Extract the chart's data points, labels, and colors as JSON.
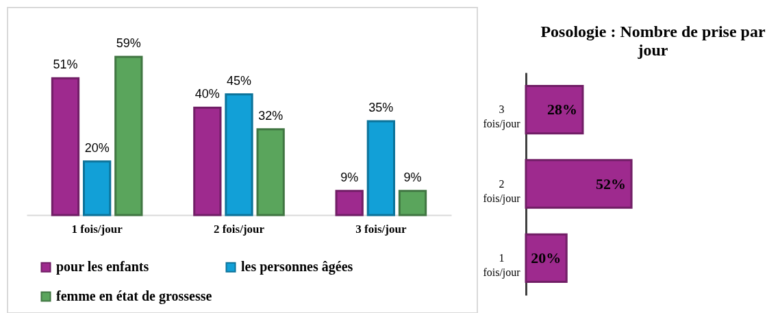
{
  "chart_data": [
    {
      "type": "bar",
      "categories": [
        "1 fois/jour",
        "2 fois/jour",
        "3 fois/jour"
      ],
      "series": [
        {
          "name": "pour les enfants",
          "color": "#9e2a8e",
          "values": [
            51,
            40,
            9
          ],
          "value_labels": [
            "51%",
            "40%",
            "9%"
          ]
        },
        {
          "name": "les personnes âgées",
          "color": "#12a0d7",
          "values": [
            20,
            45,
            35
          ],
          "value_labels": [
            "20%",
            "45%",
            "35%"
          ]
        },
        {
          "name": "femme en état de grossesse",
          "color": "#5aa55c",
          "values": [
            59,
            32,
            9
          ],
          "value_labels": [
            "59%",
            "32%",
            "9%"
          ]
        }
      ],
      "legend": "bottom",
      "tick_labels": "x"
    },
    {
      "type": "bar",
      "orientation": "horizontal",
      "title": "Posologie : Nombre de prise par jour",
      "categories": [
        "3 fois/jour",
        "2 fois/jour",
        "1 fois/jour"
      ],
      "values": [
        28,
        52,
        20
      ],
      "color": "#9e2a8e",
      "value_labels": [
        "28%",
        "52%",
        "20%"
      ],
      "tick_labels": "y"
    }
  ]
}
